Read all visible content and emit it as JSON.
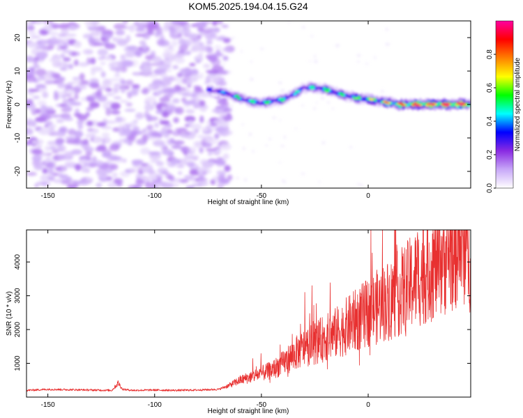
{
  "figure": {
    "title": "KOM5.2025.194.04.15.G24"
  },
  "chart_data": [
    {
      "type": "heatmap",
      "xlabel": "Height of straight line (km)",
      "ylabel": "Frequency (Hz)",
      "xlim": [
        -160,
        48
      ],
      "ylim": [
        -25,
        25
      ],
      "x_ticks": [
        -150,
        -100,
        -50,
        0
      ],
      "y_ticks": [
        -20,
        -10,
        0,
        10,
        20
      ],
      "colorbar": {
        "label": "Normalized spectral amplitude",
        "range": [
          0,
          1
        ],
        "ticks": [
          0.0,
          0.2,
          0.4,
          0.6,
          0.8
        ],
        "colormap": "rainbow",
        "colors": [
          "#ffffff",
          "#c8a8f8",
          "#8a2be2",
          "#0000ff",
          "#00ffff",
          "#00ff00",
          "#ffff00",
          "#ff8000",
          "#ff0000",
          "#ff00a0"
        ]
      },
      "noise_region": [
        -160,
        -68
      ],
      "ridge": {
        "x": [
          -75,
          -70,
          -65,
          -60,
          -55,
          -50,
          -45,
          -40,
          -35,
          -30,
          -25,
          -20,
          -15,
          -10,
          -5,
          0,
          5,
          10,
          15,
          20,
          25,
          30,
          35,
          40,
          45,
          48
        ],
        "y": [
          4.5,
          4,
          3,
          2,
          1,
          0.5,
          1,
          1.5,
          3,
          5,
          5,
          4.5,
          3.5,
          2.5,
          2,
          1.5,
          1,
          0.5,
          0,
          0,
          0,
          0,
          0,
          0,
          0,
          0
        ],
        "amplitude": [
          0.25,
          0.3,
          0.35,
          0.45,
          0.4,
          0.4,
          0.45,
          0.4,
          0.4,
          0.35,
          0.4,
          0.45,
          0.4,
          0.45,
          0.5,
          0.55,
          0.6,
          0.7,
          0.75,
          0.85,
          0.9,
          0.9,
          0.9,
          0.9,
          0.9,
          0.9
        ]
      }
    },
    {
      "type": "line",
      "xlabel": "Height of straight line (km)",
      "ylabel": "SNR (10 * v/v)",
      "xlim": [
        -160,
        48
      ],
      "ylim": [
        0,
        4950
      ],
      "x_ticks": [
        -150,
        -100,
        -50,
        0
      ],
      "y_ticks": [
        1000,
        2000,
        3000,
        4000
      ],
      "series": [
        {
          "color": "#e83030",
          "x": [
            -160,
            -150,
            -140,
            -130,
            -120,
            -117,
            -115,
            -110,
            -100,
            -90,
            -80,
            -70,
            -65,
            -60,
            -55,
            -50,
            -45,
            -40,
            -35,
            -30,
            -25,
            -20,
            -15,
            -10,
            -5,
            0,
            5,
            10,
            15,
            20,
            25,
            30,
            35,
            40,
            45,
            48
          ],
          "y": [
            200,
            230,
            220,
            210,
            200,
            420,
            230,
            200,
            210,
            200,
            210,
            230,
            350,
            500,
            600,
            700,
            800,
            1000,
            1250,
            1450,
            1600,
            1750,
            1900,
            2100,
            2300,
            2500,
            2700,
            2900,
            3100,
            3350,
            3650,
            3900,
            4150,
            4450,
            4700,
            4300
          ]
        }
      ]
    }
  ]
}
